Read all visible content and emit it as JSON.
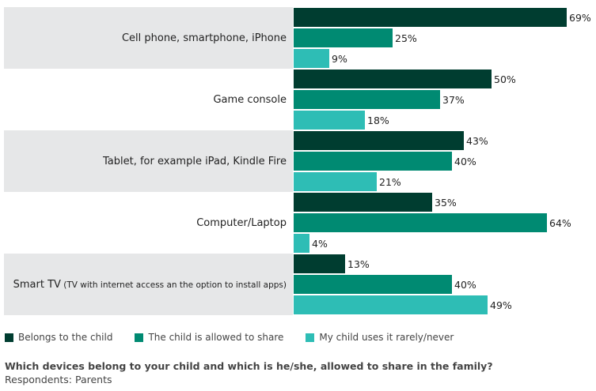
{
  "chart_data": {
    "type": "bar",
    "orientation": "horizontal",
    "categories": [
      "Cell phone, smartphone, iPhone",
      "Game console",
      "Tablet, for example iPad, Kindle Fire",
      "Computer/Laptop",
      "Smart TV"
    ],
    "category_notes": [
      "",
      "",
      "",
      "",
      "(TV with internet access an the option to install apps)"
    ],
    "series": [
      {
        "name": "Belongs to the child",
        "color": "#003d30",
        "values": [
          69,
          50,
          43,
          35,
          13
        ]
      },
      {
        "name": "The child is allowed to share",
        "color": "#008a72",
        "values": [
          25,
          37,
          40,
          64,
          40
        ]
      },
      {
        "name": "My child uses it rarely/never",
        "color": "#2ebdb5",
        "values": [
          9,
          18,
          21,
          4,
          49
        ]
      }
    ],
    "value_suffix": "%",
    "xlim": [
      0,
      70
    ],
    "legend_position": "bottom-left"
  },
  "question": "Which devices belong to your child and which is he/she, allowed to share in the family?",
  "respondents": "Respondents: Parents"
}
